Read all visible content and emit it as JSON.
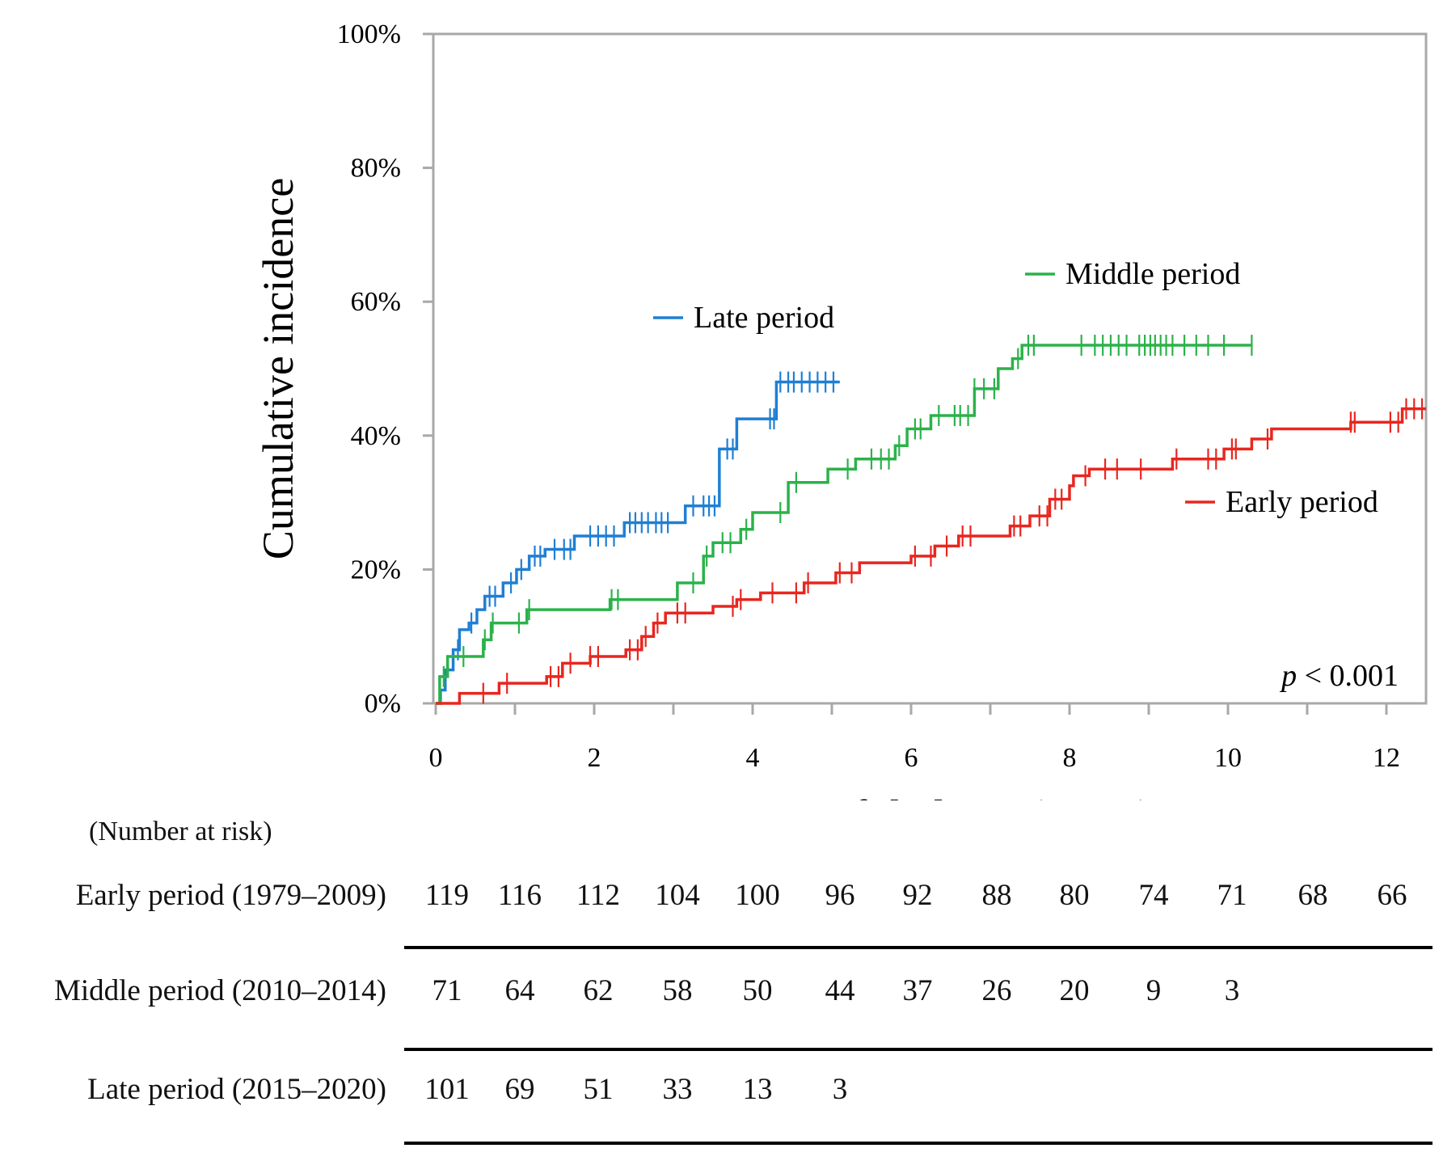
{
  "chart_data": {
    "type": "line",
    "subtype": "cumulative-incidence step curves",
    "title": "",
    "xlabel": "Duration of dialysis (years)",
    "ylabel": "Cumulative incidence",
    "xlim": [
      0,
      12.5
    ],
    "ylim": [
      0,
      100
    ],
    "x_ticks": [
      0,
      2,
      4,
      6,
      8,
      10,
      12
    ],
    "y_ticks": [
      0,
      20,
      40,
      60,
      80,
      100
    ],
    "y_tick_labels": [
      "0%",
      "20%",
      "40%",
      "60%",
      "80%",
      "100%"
    ],
    "annotation": {
      "p_symbol": "p",
      "p_rest": " < 0.001"
    },
    "series": [
      {
        "name": "Late period",
        "color": "#1f7fd4",
        "steps": [
          [
            0,
            0
          ],
          [
            0.06,
            2
          ],
          [
            0.12,
            5
          ],
          [
            0.22,
            8
          ],
          [
            0.3,
            11
          ],
          [
            0.42,
            12
          ],
          [
            0.52,
            14
          ],
          [
            0.62,
            16
          ],
          [
            0.85,
            18
          ],
          [
            1.02,
            20
          ],
          [
            1.18,
            22
          ],
          [
            1.38,
            23
          ],
          [
            1.75,
            25
          ],
          [
            2.38,
            27
          ],
          [
            3.15,
            29.5
          ],
          [
            3.58,
            38
          ],
          [
            3.8,
            42.5
          ],
          [
            4.3,
            48
          ]
        ],
        "end_x": 5.1,
        "censor_x": [
          0.28,
          0.45,
          0.68,
          0.75,
          0.95,
          1.08,
          1.25,
          1.32,
          1.5,
          1.62,
          1.7,
          1.95,
          2.05,
          2.15,
          2.25,
          2.45,
          2.52,
          2.6,
          2.68,
          2.78,
          2.85,
          2.93,
          3.25,
          3.38,
          3.45,
          3.52,
          3.68,
          3.75,
          4.22,
          4.27,
          4.35,
          4.45,
          4.52,
          4.62,
          4.72,
          4.82,
          4.92,
          5.02
        ]
      },
      {
        "name": "Middle period",
        "color": "#2bb24a",
        "steps": [
          [
            0,
            0
          ],
          [
            0.05,
            4
          ],
          [
            0.15,
            7
          ],
          [
            0.6,
            9.5
          ],
          [
            0.7,
            12
          ],
          [
            1.15,
            14
          ],
          [
            2.2,
            15.5
          ],
          [
            3.05,
            18
          ],
          [
            3.38,
            22
          ],
          [
            3.5,
            24
          ],
          [
            3.85,
            26
          ],
          [
            4.0,
            28.5
          ],
          [
            4.45,
            33
          ],
          [
            4.95,
            35
          ],
          [
            5.3,
            36.5
          ],
          [
            5.8,
            38.5
          ],
          [
            5.95,
            41
          ],
          [
            6.25,
            43
          ],
          [
            6.8,
            47
          ],
          [
            7.1,
            50
          ],
          [
            7.28,
            51.5
          ],
          [
            7.4,
            53.5
          ]
        ],
        "end_x": 10.3,
        "censor_x": [
          0.1,
          0.35,
          0.62,
          0.72,
          1.05,
          1.18,
          2.22,
          2.3,
          3.25,
          3.42,
          3.62,
          3.72,
          3.92,
          4.35,
          4.55,
          5.2,
          5.5,
          5.62,
          5.72,
          5.85,
          6.05,
          6.12,
          6.35,
          6.55,
          6.62,
          6.72,
          6.8,
          6.92,
          7.05,
          7.35,
          7.48,
          7.55,
          8.15,
          8.32,
          8.42,
          8.52,
          8.62,
          8.72,
          8.88,
          8.95,
          9.02,
          9.08,
          9.15,
          9.22,
          9.3,
          9.45,
          9.6,
          9.75,
          9.95,
          10.3
        ]
      },
      {
        "name": "Early period",
        "color": "#e8261f",
        "steps": [
          [
            0,
            0
          ],
          [
            0.3,
            1.5
          ],
          [
            0.8,
            3
          ],
          [
            1.4,
            4
          ],
          [
            1.6,
            6
          ],
          [
            1.95,
            7
          ],
          [
            2.4,
            8
          ],
          [
            2.6,
            10
          ],
          [
            2.75,
            12
          ],
          [
            2.9,
            13.5
          ],
          [
            3.5,
            14.5
          ],
          [
            3.8,
            15.5
          ],
          [
            4.1,
            16.5
          ],
          [
            4.65,
            18
          ],
          [
            5.05,
            19.5
          ],
          [
            5.35,
            21
          ],
          [
            6.0,
            22
          ],
          [
            6.3,
            23.5
          ],
          [
            6.6,
            25
          ],
          [
            7.25,
            26.5
          ],
          [
            7.5,
            28
          ],
          [
            7.75,
            30.5
          ],
          [
            8.0,
            32.5
          ],
          [
            8.05,
            34
          ],
          [
            8.25,
            35
          ],
          [
            9.3,
            36.5
          ],
          [
            9.95,
            38
          ],
          [
            10.3,
            39.5
          ],
          [
            10.55,
            41
          ],
          [
            11.55,
            42
          ],
          [
            12.2,
            44
          ]
        ],
        "end_x": 12.5,
        "censor_x": [
          0.6,
          0.9,
          1.45,
          1.55,
          1.7,
          1.95,
          2.05,
          2.45,
          2.55,
          2.65,
          2.8,
          3.05,
          3.15,
          3.75,
          3.85,
          4.25,
          4.55,
          4.7,
          5.1,
          5.25,
          6.05,
          6.25,
          6.45,
          6.65,
          6.75,
          7.3,
          7.38,
          7.62,
          7.72,
          7.82,
          7.9,
          8.2,
          8.45,
          8.6,
          8.9,
          9.35,
          9.75,
          9.85,
          10.05,
          10.1,
          10.5,
          11.55,
          11.6,
          12.05,
          12.15,
          12.25,
          12.35,
          12.45
        ]
      }
    ],
    "legend": [
      {
        "label": "Late period",
        "color": "#1f7fd4"
      },
      {
        "label": "Middle period",
        "color": "#2bb24a"
      },
      {
        "label": "Early period",
        "color": "#e8261f"
      }
    ]
  },
  "risk_table": {
    "title": "(Number at risk)",
    "time_points": [
      0,
      1,
      2,
      3,
      4,
      5,
      6,
      7,
      8,
      9,
      10,
      11,
      12
    ],
    "rows": [
      {
        "label": "Early period (1979–2009)",
        "values": [
          "119",
          "116",
          "112",
          "104",
          "100",
          "96",
          "92",
          "88",
          "80",
          "74",
          "71",
          "68",
          "66"
        ]
      },
      {
        "label": "Middle period (2010–2014)",
        "values": [
          "71",
          "64",
          "62",
          "58",
          "50",
          "44",
          "37",
          "26",
          "20",
          "9",
          "3"
        ]
      },
      {
        "label": "Late period (2015–2020)",
        "values": [
          "101",
          "69",
          "51",
          "33",
          "13",
          "3"
        ]
      }
    ]
  }
}
